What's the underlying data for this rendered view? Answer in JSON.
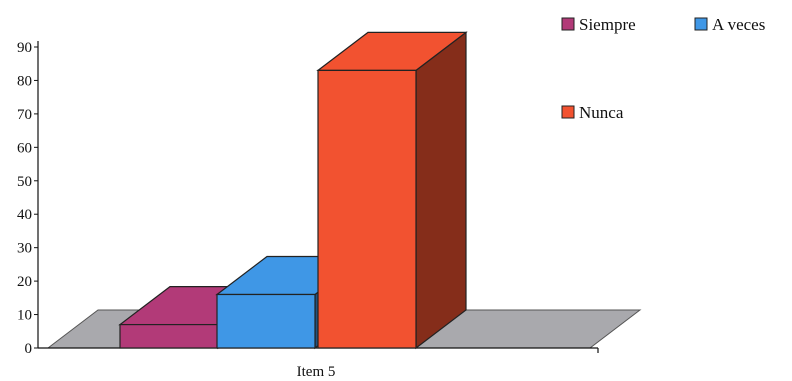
{
  "chart_data": {
    "type": "bar",
    "categories": [
      "Item 5"
    ],
    "series": [
      {
        "name": "Siempre",
        "values": [
          7
        ],
        "color": "#b23a78"
      },
      {
        "name": "A veces",
        "values": [
          16
        ],
        "color": "#3f97e6"
      },
      {
        "name": "Nunca",
        "values": [
          83
        ],
        "color": "#f25230"
      }
    ],
    "ylim": [
      0,
      90
    ],
    "yticks": [
      0,
      10,
      20,
      30,
      40,
      50,
      60,
      70,
      80,
      90
    ],
    "title": "",
    "xlabel": "",
    "ylabel": "",
    "grid": false,
    "legend_position": "top-right",
    "style": "3d"
  }
}
